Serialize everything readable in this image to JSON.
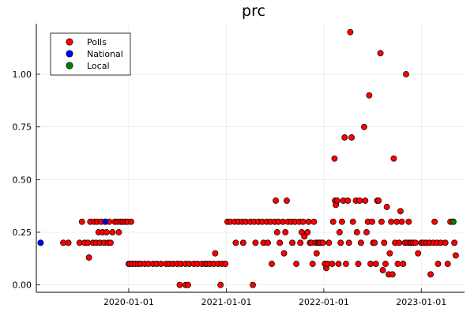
{
  "chart_data": {
    "type": "scatter",
    "title": "prc",
    "xlabel": "",
    "ylabel": "",
    "x_type": "date",
    "xlim": [
      "2019-01-20",
      "2023-06-12"
    ],
    "ylim": [
      -0.035,
      1.24
    ],
    "x_ticks": [
      "2020-01-01",
      "2021-01-01",
      "2022-01-01",
      "2023-01-01"
    ],
    "y_ticks": [
      0.0,
      0.25,
      0.5,
      0.75,
      1.0
    ],
    "y_tick_labels": [
      "0.00",
      "0.25",
      "0.50",
      "0.75",
      "1.00"
    ],
    "grid": true,
    "legend_position": "top-left",
    "colors": {
      "Polls": "#ff0000",
      "National": "#0000ff",
      "Local": "#008000"
    },
    "series": [
      {
        "name": "Polls",
        "color": "#ff0000",
        "points": [
          [
            "2019-05-01",
            0.2
          ],
          [
            "2019-05-20",
            0.2
          ],
          [
            "2019-07-01",
            0.2
          ],
          [
            "2019-07-10",
            0.3
          ],
          [
            "2019-07-20",
            0.2
          ],
          [
            "2019-08-01",
            0.2
          ],
          [
            "2019-08-05",
            0.13
          ],
          [
            "2019-08-10",
            0.3
          ],
          [
            "2019-08-20",
            0.2
          ],
          [
            "2019-08-25",
            0.3
          ],
          [
            "2019-09-01",
            0.2
          ],
          [
            "2019-09-05",
            0.3
          ],
          [
            "2019-09-10",
            0.25
          ],
          [
            "2019-09-15",
            0.2
          ],
          [
            "2019-09-20",
            0.3
          ],
          [
            "2019-09-25",
            0.25
          ],
          [
            "2019-10-01",
            0.2
          ],
          [
            "2019-10-05",
            0.3
          ],
          [
            "2019-10-10",
            0.25
          ],
          [
            "2019-10-15",
            0.2
          ],
          [
            "2019-10-20",
            0.3
          ],
          [
            "2019-10-25",
            0.2
          ],
          [
            "2019-11-01",
            0.25
          ],
          [
            "2019-11-10",
            0.3
          ],
          [
            "2019-11-20",
            0.3
          ],
          [
            "2019-11-25",
            0.25
          ],
          [
            "2019-12-01",
            0.3
          ],
          [
            "2019-12-10",
            0.3
          ],
          [
            "2019-12-20",
            0.3
          ],
          [
            "2019-12-28",
            0.3
          ],
          [
            "2020-01-01",
            0.1
          ],
          [
            "2020-01-05",
            0.1
          ],
          [
            "2020-01-10",
            0.3
          ],
          [
            "2020-01-15",
            0.1
          ],
          [
            "2020-01-25",
            0.1
          ],
          [
            "2020-02-05",
            0.1
          ],
          [
            "2020-02-15",
            0.1
          ],
          [
            "2020-03-01",
            0.1
          ],
          [
            "2020-03-15",
            0.1
          ],
          [
            "2020-04-01",
            0.1
          ],
          [
            "2020-04-15",
            0.1
          ],
          [
            "2020-05-01",
            0.1
          ],
          [
            "2020-05-20",
            0.1
          ],
          [
            "2020-06-01",
            0.1
          ],
          [
            "2020-06-15",
            0.1
          ],
          [
            "2020-07-01",
            0.1
          ],
          [
            "2020-07-15",
            0.1
          ],
          [
            "2020-07-10",
            0.0
          ],
          [
            "2020-08-01",
            0.1
          ],
          [
            "2020-08-01",
            0.0
          ],
          [
            "2020-08-10",
            0.0
          ],
          [
            "2020-08-15",
            0.1
          ],
          [
            "2020-09-01",
            0.1
          ],
          [
            "2020-09-15",
            0.1
          ],
          [
            "2020-10-01",
            0.1
          ],
          [
            "2020-10-15",
            0.1
          ],
          [
            "2020-10-20",
            0.1
          ],
          [
            "2020-11-01",
            0.1
          ],
          [
            "2020-11-15",
            0.1
          ],
          [
            "2020-12-01",
            0.1
          ],
          [
            "2020-12-10",
            0.0
          ],
          [
            "2020-12-15",
            0.1
          ],
          [
            "2020-12-28",
            0.1
          ],
          [
            "2020-11-20",
            0.15
          ],
          [
            "2021-01-05",
            0.3
          ],
          [
            "2021-01-15",
            0.3
          ],
          [
            "2021-02-01",
            0.3
          ],
          [
            "2021-02-05",
            0.2
          ],
          [
            "2021-02-15",
            0.3
          ],
          [
            "2021-03-01",
            0.3
          ],
          [
            "2021-03-05",
            0.2
          ],
          [
            "2021-03-15",
            0.3
          ],
          [
            "2021-04-01",
            0.3
          ],
          [
            "2021-04-15",
            0.3
          ],
          [
            "2021-04-10",
            0.0
          ],
          [
            "2021-04-20",
            0.2
          ],
          [
            "2021-05-01",
            0.3
          ],
          [
            "2021-05-15",
            0.3
          ],
          [
            "2021-05-20",
            0.2
          ],
          [
            "2021-06-01",
            0.3
          ],
          [
            "2021-06-05",
            0.2
          ],
          [
            "2021-06-15",
            0.3
          ],
          [
            "2021-06-20",
            0.1
          ],
          [
            "2021-07-01",
            0.3
          ],
          [
            "2021-07-05",
            0.4
          ],
          [
            "2021-07-10",
            0.25
          ],
          [
            "2021-07-15",
            0.3
          ],
          [
            "2021-07-20",
            0.2
          ],
          [
            "2021-08-01",
            0.3
          ],
          [
            "2021-08-05",
            0.15
          ],
          [
            "2021-08-10",
            0.25
          ],
          [
            "2021-08-15",
            0.4
          ],
          [
            "2021-08-20",
            0.3
          ],
          [
            "2021-09-01",
            0.3
          ],
          [
            "2021-09-05",
            0.2
          ],
          [
            "2021-09-15",
            0.3
          ],
          [
            "2021-09-20",
            0.1
          ],
          [
            "2021-10-01",
            0.3
          ],
          [
            "2021-10-05",
            0.2
          ],
          [
            "2021-10-10",
            0.25
          ],
          [
            "2021-10-15",
            0.3
          ],
          [
            "2021-10-20",
            0.23
          ],
          [
            "2021-11-01",
            0.25
          ],
          [
            "2021-11-05",
            0.3
          ],
          [
            "2021-11-10",
            0.2
          ],
          [
            "2021-11-15",
            0.2
          ],
          [
            "2021-11-20",
            0.1
          ],
          [
            "2021-11-25",
            0.3
          ],
          [
            "2021-12-01",
            0.2
          ],
          [
            "2021-12-05",
            0.15
          ],
          [
            "2021-12-10",
            0.2
          ],
          [
            "2021-12-15",
            0.2
          ],
          [
            "2021-12-20",
            0.2
          ],
          [
            "2021-12-28",
            0.2
          ],
          [
            "2022-01-05",
            0.1
          ],
          [
            "2022-01-10",
            0.08
          ],
          [
            "2022-01-15",
            0.1
          ],
          [
            "2022-01-20",
            0.2
          ],
          [
            "2022-02-01",
            0.1
          ],
          [
            "2022-02-05",
            0.3
          ],
          [
            "2022-02-10",
            0.6
          ],
          [
            "2022-02-12",
            0.4
          ],
          [
            "2022-02-15",
            0.38
          ],
          [
            "2022-02-20",
            0.4
          ],
          [
            "2022-02-25",
            0.1
          ],
          [
            "2022-03-01",
            0.25
          ],
          [
            "2022-03-05",
            0.2
          ],
          [
            "2022-03-10",
            0.3
          ],
          [
            "2022-03-15",
            0.4
          ],
          [
            "2022-03-20",
            0.7
          ],
          [
            "2022-03-25",
            0.1
          ],
          [
            "2022-04-01",
            0.4
          ],
          [
            "2022-04-05",
            0.2
          ],
          [
            "2022-04-10",
            1.2
          ],
          [
            "2022-04-15",
            0.7
          ],
          [
            "2022-04-20",
            0.3
          ],
          [
            "2022-05-01",
            0.4
          ],
          [
            "2022-05-05",
            0.25
          ],
          [
            "2022-05-10",
            0.1
          ],
          [
            "2022-05-15",
            0.4
          ],
          [
            "2022-05-20",
            0.2
          ],
          [
            "2022-06-01",
            0.75
          ],
          [
            "2022-06-05",
            0.4
          ],
          [
            "2022-06-10",
            0.25
          ],
          [
            "2022-06-15",
            0.3
          ],
          [
            "2022-06-20",
            0.9
          ],
          [
            "2022-06-25",
            0.1
          ],
          [
            "2022-07-01",
            0.3
          ],
          [
            "2022-07-05",
            0.2
          ],
          [
            "2022-07-10",
            0.2
          ],
          [
            "2022-07-15",
            0.1
          ],
          [
            "2022-07-20",
            0.4
          ],
          [
            "2022-07-25",
            0.4
          ],
          [
            "2022-08-01",
            1.1
          ],
          [
            "2022-08-05",
            0.3
          ],
          [
            "2022-08-10",
            0.07
          ],
          [
            "2022-08-15",
            0.2
          ],
          [
            "2022-08-20",
            0.1
          ],
          [
            "2022-08-25",
            0.37
          ],
          [
            "2022-09-01",
            0.05
          ],
          [
            "2022-09-05",
            0.15
          ],
          [
            "2022-09-10",
            0.3
          ],
          [
            "2022-09-15",
            0.05
          ],
          [
            "2022-09-20",
            0.6
          ],
          [
            "2022-09-25",
            0.2
          ],
          [
            "2022-10-01",
            0.3
          ],
          [
            "2022-10-05",
            0.1
          ],
          [
            "2022-10-10",
            0.2
          ],
          [
            "2022-10-15",
            0.35
          ],
          [
            "2022-10-20",
            0.3
          ],
          [
            "2022-10-25",
            0.1
          ],
          [
            "2022-11-01",
            0.2
          ],
          [
            "2022-11-05",
            1.0
          ],
          [
            "2022-11-10",
            0.2
          ],
          [
            "2022-11-15",
            0.3
          ],
          [
            "2022-11-20",
            0.2
          ],
          [
            "2022-11-25",
            0.2
          ],
          [
            "2022-12-01",
            0.2
          ],
          [
            "2022-12-10",
            0.2
          ],
          [
            "2022-12-20",
            0.15
          ],
          [
            "2023-01-01",
            0.2
          ],
          [
            "2023-01-10",
            0.2
          ],
          [
            "2023-01-20",
            0.2
          ],
          [
            "2023-02-01",
            0.2
          ],
          [
            "2023-02-05",
            0.05
          ],
          [
            "2023-02-15",
            0.2
          ],
          [
            "2023-02-20",
            0.3
          ],
          [
            "2023-03-01",
            0.2
          ],
          [
            "2023-03-05",
            0.1
          ],
          [
            "2023-03-15",
            0.2
          ],
          [
            "2023-04-01",
            0.2
          ],
          [
            "2023-04-10",
            0.1
          ],
          [
            "2023-04-20",
            0.3
          ],
          [
            "2023-05-01",
            0.3
          ],
          [
            "2023-05-05",
            0.2
          ],
          [
            "2023-05-10",
            0.14
          ]
        ]
      },
      {
        "name": "National",
        "color": "#0000ff",
        "points": [
          [
            "2019-02-05",
            0.2
          ],
          [
            "2019-10-05",
            0.3
          ]
        ]
      },
      {
        "name": "Local",
        "color": "#008000",
        "points": [
          [
            "2023-05-01",
            0.3
          ]
        ]
      }
    ]
  }
}
